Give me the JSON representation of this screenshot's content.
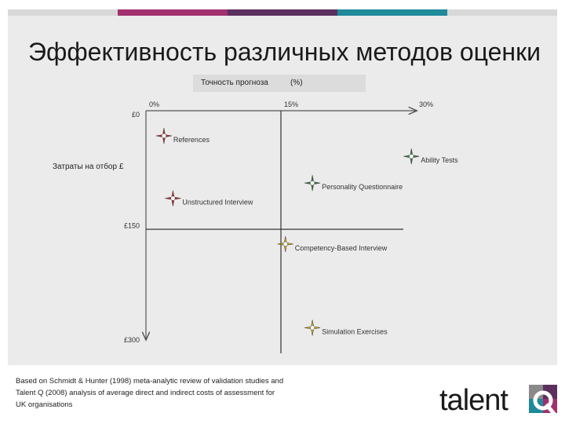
{
  "title": "Эффективность различных методов оценки",
  "x_axis": {
    "label": "Точность прогноза",
    "unit": "(%)"
  },
  "y_axis": {
    "label": "Затраты на отбор £"
  },
  "chart_data": {
    "type": "scatter",
    "title": "Эффективность различных методов оценки",
    "xlabel": "Точность прогноза (%)",
    "ylabel": "Затраты на отбор £",
    "xlim": [
      0,
      30
    ],
    "ylim": [
      300,
      0
    ],
    "x_ticks": [
      "0%",
      "15%",
      "30%"
    ],
    "y_ticks": [
      "£0",
      "£150",
      "£300"
    ],
    "grid": false,
    "points": [
      {
        "label": "References",
        "x": 2,
        "y": 33,
        "color": "#c0282d"
      },
      {
        "label": "Ability Tests",
        "x": 29.5,
        "y": 60,
        "color": "#3a7a3a"
      },
      {
        "label": "Personality Questionnaire",
        "x": 18.5,
        "y": 95,
        "color": "#3a7a3a"
      },
      {
        "label": "Unstructured Interview",
        "x": 3,
        "y": 115,
        "color": "#c0282d"
      },
      {
        "label": "Competency-Based Interview",
        "x": 15.5,
        "y": 175,
        "color": "#e0b000"
      },
      {
        "label": "Simulation Exercises",
        "x": 18.5,
        "y": 285,
        "color": "#e0b000"
      }
    ]
  },
  "source": "Based on Schmidt & Hunter (1998) meta-analytic review of validation studies and Talent Q (2008) analysis of average direct and indirect costs of assessment for UK organisations",
  "logo": {
    "text": "talent",
    "mark": "Q"
  },
  "colors": {
    "topbar": [
      "#d8d8d8",
      "#a0306e",
      "#5b2f5e",
      "#1e8a9a",
      "#d8d8d8"
    ],
    "panel": "#ebebeb"
  }
}
